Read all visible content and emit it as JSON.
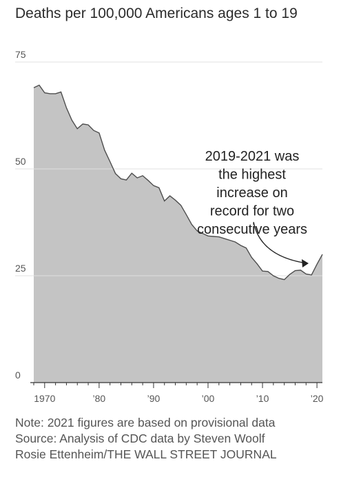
{
  "title": "Deaths per 100,000 Americans ages 1 to 19",
  "chart_data": {
    "type": "area",
    "title": "Deaths per 100,000 Americans ages 1 to 19",
    "xlabel": "",
    "ylabel": "",
    "xlim": [
      1968,
      2021
    ],
    "ylim": [
      0,
      75
    ],
    "yticks": [
      0,
      25,
      50,
      75
    ],
    "ytick_labels": [
      "0",
      "25",
      "50",
      "75"
    ],
    "xticks": [
      1970,
      1980,
      1990,
      2000,
      2010,
      2020
    ],
    "xtick_labels": [
      "1970",
      "’80",
      "’90",
      "’00",
      "’10",
      "’20"
    ],
    "grid": true,
    "fill_color": "#c4c4c4",
    "line_color": "#4d4d4d",
    "series": [
      {
        "x": [
          1968,
          1969,
          1970,
          1971,
          1972,
          1973,
          1974,
          1975,
          1976,
          1977,
          1978,
          1979,
          1980,
          1981,
          1982,
          1983,
          1984,
          1985,
          1986,
          1987,
          1988,
          1989,
          1990,
          1991,
          1992,
          1993,
          1994,
          1995,
          1996,
          1997,
          1998,
          1999,
          2000,
          2001,
          2002,
          2003,
          2004,
          2005,
          2006,
          2007,
          2008,
          2009,
          2010,
          2011,
          2012,
          2013,
          2014,
          2015,
          2016,
          2017,
          2018,
          2019,
          2020,
          2021
        ],
        "values": [
          69.0,
          69.6,
          67.8,
          67.6,
          67.6,
          68.0,
          64.3,
          61.4,
          59.4,
          60.5,
          60.3,
          59.0,
          58.4,
          54.4,
          51.7,
          48.9,
          47.7,
          47.4,
          49.0,
          47.9,
          48.4,
          47.3,
          46.1,
          45.6,
          42.5,
          43.7,
          42.7,
          41.5,
          39.3,
          37.0,
          35.5,
          34.9,
          34.3,
          34.2,
          34.1,
          33.7,
          33.3,
          32.9,
          32.1,
          31.5,
          29.3,
          27.8,
          26.1,
          26.0,
          25.0,
          24.4,
          24.1,
          25.3,
          26.2,
          26.3,
          25.4,
          25.2,
          27.7,
          30.0
        ]
      }
    ],
    "annotation": {
      "lines": [
        "2019-2021 was",
        "the highest",
        "increase on",
        "record for two",
        "consecutive years"
      ]
    }
  },
  "footer": {
    "note": "Note: 2021 figures are based on provisional data",
    "source": "Source: Analysis of CDC data by Steven Woolf",
    "credit": "Rosie Ettenheim/THE WALL STREET JOURNAL"
  }
}
